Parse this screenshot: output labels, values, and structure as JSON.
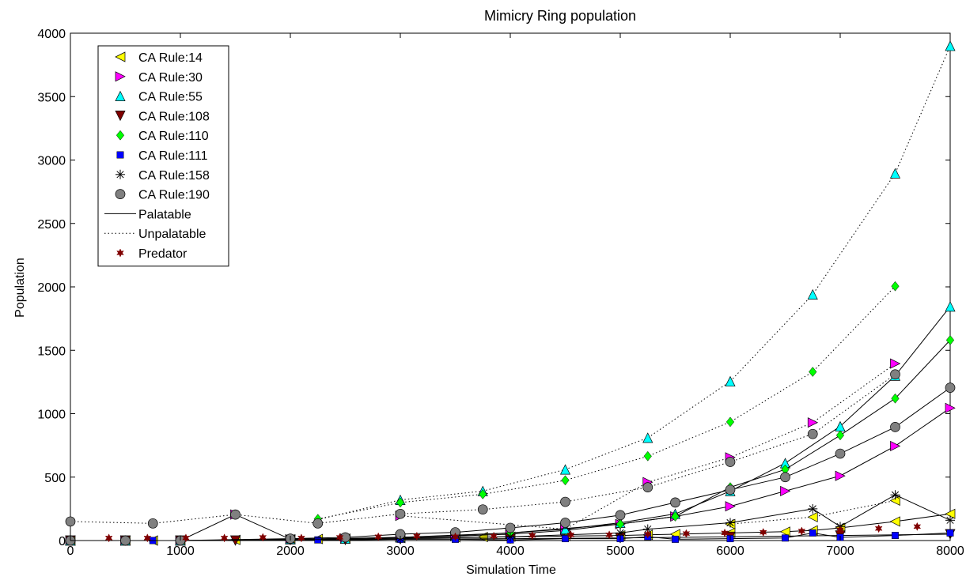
{
  "chart_data": {
    "type": "line",
    "title": "Mimicry Ring population",
    "xlabel": "Simulation Time",
    "ylabel": "Population",
    "xlim": [
      0,
      8000
    ],
    "ylim": [
      0,
      4000
    ],
    "xticks": [
      0,
      1000,
      2000,
      3000,
      4000,
      5000,
      6000,
      7000,
      8000
    ],
    "yticks": [
      0,
      500,
      1000,
      1500,
      2000,
      2500,
      3000,
      3500,
      4000
    ],
    "grid": false,
    "legend_position": "top-left",
    "legend": [
      {
        "label": "CA Rule:14",
        "marker": "triangle-left",
        "color": "#ffff00"
      },
      {
        "label": "CA Rule:30",
        "marker": "triangle-right",
        "color": "#ff00ff"
      },
      {
        "label": "CA Rule:55",
        "marker": "triangle-up",
        "color": "#00ffff"
      },
      {
        "label": "CA Rule:108",
        "marker": "triangle-down",
        "color": "#800000"
      },
      {
        "label": "CA Rule:110",
        "marker": "diamond",
        "color": "#00ff00"
      },
      {
        "label": "CA Rule:111",
        "marker": "square",
        "color": "#0000ff"
      },
      {
        "label": "CA Rule:158",
        "marker": "asterisk",
        "color": "#000000"
      },
      {
        "label": "CA Rule:190",
        "marker": "circle",
        "color": "#808080"
      },
      {
        "label": "Palatable",
        "marker": "solid-line",
        "color": "#000000"
      },
      {
        "label": "Unpalatable",
        "marker": "dotted-line",
        "color": "#000000"
      },
      {
        "label": "Predator",
        "marker": "hexagram",
        "color": "#800000"
      }
    ],
    "series": [
      {
        "name": "CA Rule:14",
        "marker": "triangle-left",
        "color": "#ffff00",
        "line": "solid",
        "x": [
          0,
          500,
          750,
          1000,
          1500,
          2000,
          2250,
          2500,
          3000,
          3500,
          3750,
          4000,
          4500,
          5000,
          5250,
          5500,
          6000,
          6500,
          6750,
          7000,
          7500,
          8000
        ],
        "y": [
          0,
          0,
          0,
          0,
          5,
          10,
          12,
          15,
          20,
          25,
          28,
          30,
          35,
          40,
          45,
          50,
          60,
          70,
          80,
          100,
          150,
          210
        ]
      },
      {
        "name": "CA Rule:14",
        "marker": "triangle-left",
        "color": "#ffff00",
        "line": "dotted",
        "x": [
          6000,
          6750,
          7500
        ],
        "y": [
          130,
          185,
          315
        ]
      },
      {
        "name": "CA Rule:30",
        "marker": "triangle-right",
        "color": "#ff00ff",
        "line": "solid",
        "x": [
          0,
          500,
          1000,
          1500,
          2000,
          2500,
          3000,
          3500,
          4000,
          4500,
          5000,
          5500,
          6000,
          6500,
          7000,
          7500,
          8000
        ],
        "y": [
          0,
          0,
          0,
          205,
          10,
          15,
          25,
          35,
          50,
          80,
          130,
          190,
          270,
          390,
          510,
          745,
          1045
        ]
      },
      {
        "name": "CA Rule:30",
        "marker": "triangle-right",
        "color": "#ff00ff",
        "line": "dotted",
        "x": [
          3000,
          4500,
          5250,
          6000,
          6750,
          7500
        ],
        "y": [
          195,
          90,
          460,
          655,
          930,
          1395
        ]
      },
      {
        "name": "CA Rule:55",
        "marker": "triangle-up",
        "color": "#00ffff",
        "line": "solid",
        "x": [
          0,
          500,
          1000,
          2000,
          2500,
          3000,
          3500,
          4000,
          4500,
          5000,
          5500,
          6000,
          6500,
          7000,
          7500,
          8000
        ],
        "y": [
          0,
          0,
          0,
          10,
          15,
          25,
          40,
          60,
          90,
          140,
          210,
          390,
          610,
          900,
          1300,
          1845
        ]
      },
      {
        "name": "CA Rule:55",
        "marker": "triangle-up",
        "color": "#00ffff",
        "line": "dotted",
        "x": [
          2250,
          3000,
          3750,
          4500,
          5250,
          6000,
          6750,
          7500,
          8000
        ],
        "y": [
          165,
          320,
          390,
          560,
          810,
          1255,
          1940,
          2895,
          3900
        ]
      },
      {
        "name": "CA Rule:108",
        "marker": "triangle-down",
        "color": "#800000",
        "line": "solid",
        "x": [
          0,
          500,
          1000,
          1500,
          2000,
          2500,
          3000,
          4000,
          5000,
          6000,
          7000,
          8000
        ],
        "y": [
          0,
          0,
          0,
          0,
          5,
          5,
          10,
          15,
          20,
          30,
          40,
          50
        ]
      },
      {
        "name": "CA Rule:110",
        "marker": "diamond",
        "color": "#00ff00",
        "line": "solid",
        "x": [
          0,
          1000,
          2000,
          3000,
          4000,
          5000,
          5500,
          6000,
          6500,
          7000,
          7500,
          8000
        ],
        "y": [
          0,
          0,
          10,
          25,
          60,
          130,
          190,
          420,
          560,
          830,
          1120,
          1580
        ]
      },
      {
        "name": "CA Rule:110",
        "marker": "diamond",
        "color": "#00ff00",
        "line": "dotted",
        "x": [
          2250,
          3000,
          3750,
          4500,
          5250,
          6000,
          6750,
          7500
        ],
        "y": [
          170,
          300,
          365,
          475,
          665,
          935,
          1330,
          2005
        ]
      },
      {
        "name": "CA Rule:111",
        "marker": "square",
        "color": "#0000ff",
        "line": "solid",
        "x": [
          0,
          500,
          750,
          1000,
          2000,
          2250,
          3000,
          3500,
          4000,
          4500,
          5000,
          5250,
          5500,
          6000,
          6500,
          6750,
          7000,
          7500,
          8000
        ],
        "y": [
          0,
          0,
          0,
          0,
          5,
          5,
          10,
          10,
          5,
          15,
          15,
          30,
          10,
          15,
          20,
          60,
          25,
          40,
          60
        ]
      },
      {
        "name": "CA Rule:158",
        "marker": "asterisk",
        "color": "#000000",
        "line": "solid",
        "x": [
          0,
          500,
          1000,
          2000,
          3000,
          4000,
          5000,
          5250,
          6000,
          6750,
          7000,
          7500,
          8000
        ],
        "y": [
          0,
          0,
          0,
          5,
          15,
          30,
          60,
          90,
          140,
          250,
          110,
          360,
          160
        ]
      },
      {
        "name": "CA Rule:190",
        "marker": "circle",
        "color": "#808080",
        "line": "solid",
        "x": [
          0,
          500,
          1000,
          2000,
          2500,
          3000,
          3500,
          4000,
          4500,
          5000,
          5500,
          6000,
          6500,
          7000,
          7500,
          8000
        ],
        "y": [
          0,
          0,
          0,
          15,
          25,
          50,
          65,
          100,
          140,
          200,
          300,
          400,
          500,
          685,
          895,
          1205
        ]
      },
      {
        "name": "CA Rule:190",
        "marker": "circle",
        "color": "#808080",
        "line": "dotted",
        "x": [
          0,
          750,
          1500,
          2250,
          3000,
          3750,
          4500,
          5250,
          6000,
          6750,
          7500
        ],
        "y": [
          150,
          135,
          205,
          135,
          210,
          245,
          305,
          420,
          620,
          840,
          1310
        ]
      },
      {
        "name": "Predator",
        "marker": "hexagram",
        "color": "#800000",
        "line": "none",
        "x": [
          350,
          700,
          1050,
          1400,
          1750,
          2100,
          2450,
          2800,
          3150,
          3500,
          3850,
          4200,
          4550,
          4900,
          5250,
          5600,
          5950,
          6300,
          6650,
          7000,
          7350,
          7700
        ],
        "y": [
          20,
          20,
          20,
          20,
          25,
          20,
          25,
          30,
          35,
          30,
          35,
          40,
          45,
          45,
          50,
          55,
          60,
          65,
          75,
          85,
          95,
          110
        ]
      }
    ]
  }
}
